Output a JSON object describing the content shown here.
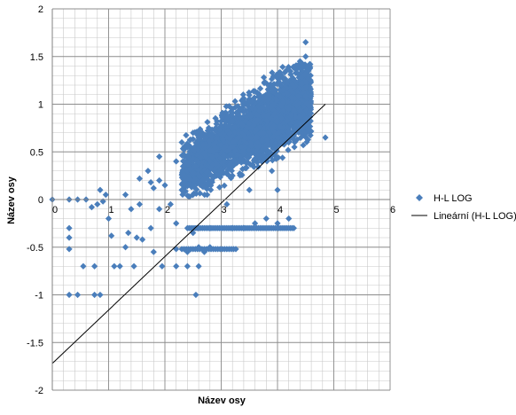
{
  "chart_data": {
    "type": "scatter",
    "title": "",
    "xlabel": "Název osy",
    "ylabel": "Název osy",
    "xlim": [
      0,
      6
    ],
    "ylim": [
      -2,
      2
    ],
    "x_ticks": [
      0,
      1,
      2,
      3,
      4,
      5,
      6
    ],
    "y_ticks": [
      2,
      1.5,
      1,
      0.5,
      0,
      -0.5,
      -1,
      -1.5,
      -2
    ],
    "x_tick_labels": [
      "0",
      "1",
      "2",
      "3",
      "4",
      "5",
      "6"
    ],
    "y_tick_labels": [
      "2",
      "1.5",
      "1",
      "0.5",
      "0",
      "-0.5",
      "-1",
      "-1.5",
      "-2"
    ],
    "grid": true,
    "legend_position": "right",
    "series": [
      {
        "name": "H-L LOG",
        "marker": "diamond",
        "color": "#4a7ebb",
        "points": [
          [
            0,
            0
          ],
          [
            0.3,
            0
          ],
          [
            0.45,
            0
          ],
          [
            0.6,
            0
          ],
          [
            0.3,
            -0.3
          ],
          [
            0.3,
            -0.4
          ],
          [
            0.3,
            -0.52
          ],
          [
            0.3,
            -1
          ],
          [
            0.45,
            -1
          ],
          [
            0.55,
            -0.7
          ],
          [
            0.75,
            -0.7
          ],
          [
            0.75,
            -1
          ],
          [
            0.85,
            -1
          ],
          [
            0.7,
            -0.08
          ],
          [
            0.8,
            -0.05
          ],
          [
            0.9,
            -0.02
          ],
          [
            0.95,
            0.05
          ],
          [
            0.85,
            0.1
          ],
          [
            1.0,
            -0.2
          ],
          [
            1.05,
            -0.38
          ],
          [
            1.1,
            -0.7
          ],
          [
            1.2,
            -0.7
          ],
          [
            1.3,
            0.05
          ],
          [
            1.4,
            -0.1
          ],
          [
            1.3,
            -0.5
          ],
          [
            1.35,
            -0.35
          ],
          [
            1.45,
            -0.7
          ],
          [
            1.5,
            -0.4
          ],
          [
            1.6,
            -0.42
          ],
          [
            1.55,
            -0.05
          ],
          [
            1.55,
            0.22
          ],
          [
            1.7,
            0.3
          ],
          [
            1.75,
            0.18
          ],
          [
            1.8,
            0.12
          ],
          [
            1.9,
            0.45
          ],
          [
            1.9,
            0.2
          ],
          [
            1.8,
            -0.55
          ],
          [
            1.75,
            -0.3
          ],
          [
            1.9,
            -0.1
          ],
          [
            1.95,
            -0.7
          ],
          [
            2.0,
            0.15
          ],
          [
            2.1,
            -0.05
          ],
          [
            2.2,
            -0.25
          ],
          [
            2.2,
            0.4
          ],
          [
            2.3,
            0.6
          ],
          [
            2.4,
            0.55
          ],
          [
            2.5,
            0.7
          ],
          [
            2.5,
            -0.35
          ],
          [
            2.55,
            -1.0
          ],
          [
            2.6,
            -0.5
          ],
          [
            2.2,
            -0.7
          ],
          [
            2.4,
            -0.7
          ],
          [
            2.6,
            -0.7
          ],
          [
            2.7,
            -0.55
          ],
          [
            2.8,
            -0.5
          ],
          [
            2.2,
            -0.52
          ],
          [
            2.4,
            -0.55
          ],
          [
            2.6,
            -0.3
          ],
          [
            2.8,
            -0.3
          ],
          [
            3.0,
            -0.3
          ],
          [
            3.2,
            -0.3
          ],
          [
            3.4,
            -0.3
          ],
          [
            3.6,
            -0.25
          ],
          [
            3.8,
            -0.2
          ],
          [
            4.0,
            -0.25
          ],
          [
            4.2,
            -0.2
          ],
          [
            4.5,
            1.65
          ],
          [
            4.5,
            1.5
          ],
          [
            4.4,
            1.45
          ],
          [
            4.55,
            1.35
          ],
          [
            4.3,
            1.25
          ],
          [
            4.1,
            1.15
          ],
          [
            4.85,
            0.65
          ],
          [
            4.5,
            0.85
          ],
          [
            3.0,
            0.78
          ],
          [
            3.2,
            0.82
          ],
          [
            2.8,
            0.4
          ],
          [
            3.6,
            0.95
          ],
          [
            3.85,
            1.05
          ],
          [
            2.65,
            0.15
          ],
          [
            2.75,
            0.05
          ],
          [
            3.2,
            0.25
          ],
          [
            3.4,
            0.4
          ],
          [
            3.65,
            0.55
          ],
          [
            3.9,
            0.75
          ],
          [
            4.2,
            0.95
          ],
          [
            3.1,
            -0.05
          ],
          [
            3.5,
            0.1
          ],
          [
            3.9,
            0.3
          ],
          [
            4.3,
            0.55
          ],
          [
            4.45,
            0.75
          ],
          [
            2.9,
            0.6
          ],
          [
            3.3,
            0.65
          ],
          [
            2.45,
            0.32
          ],
          [
            2.3,
            0.1
          ],
          [
            4.0,
            0.1
          ]
        ]
      }
    ],
    "trendline": {
      "name": "Lineární (H-L LOG)",
      "type": "linear",
      "color": "#000000",
      "x0": 0,
      "y0": -1.72,
      "x1": 4.85,
      "y1": 1.0
    }
  }
}
